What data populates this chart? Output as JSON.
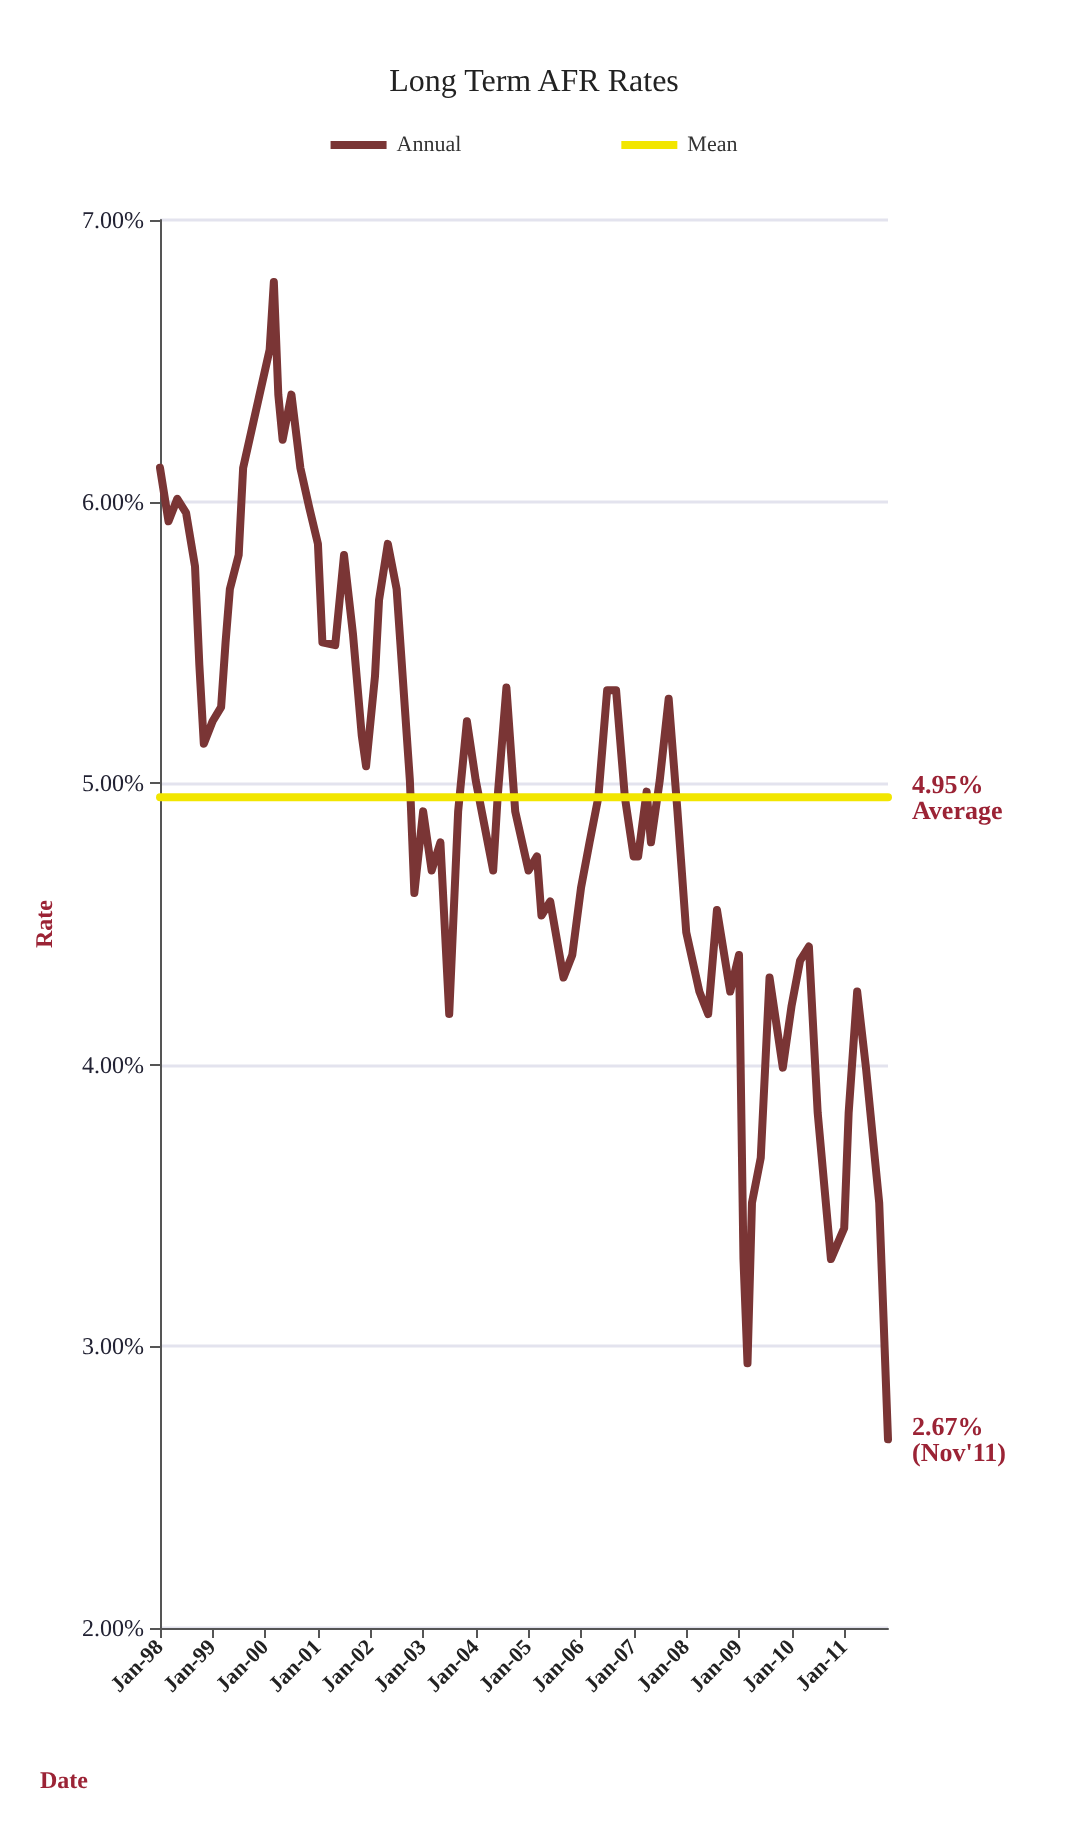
{
  "chart_data": {
    "type": "line",
    "title": "Long Term AFR Rates",
    "xlabel": "Date",
    "ylabel": "Rate",
    "x": [
      "1998-01",
      "1998-03",
      "1998-05",
      "1998-07",
      "1998-09",
      "1998-10",
      "1998-11",
      "1999-01",
      "1999-03",
      "1999-04",
      "1999-05",
      "1999-07",
      "1999-08",
      "1999-11",
      "2000-02",
      "2000-03",
      "2000-04",
      "2000-05",
      "2000-07",
      "2000-09",
      "2000-11",
      "2001-01",
      "2001-02",
      "2001-05",
      "2001-07",
      "2001-09",
      "2001-11",
      "2001-12",
      "2002-02",
      "2002-03",
      "2002-05",
      "2002-07",
      "2002-10",
      "2002-11",
      "2003-01",
      "2003-03",
      "2003-05",
      "2003-07",
      "2003-09",
      "2003-11",
      "2004-01",
      "2004-05",
      "2004-06",
      "2004-08",
      "2004-10",
      "2005-01",
      "2005-03",
      "2005-04",
      "2005-06",
      "2005-09",
      "2005-11",
      "2006-01",
      "2006-03",
      "2006-05",
      "2006-07",
      "2006-09",
      "2006-11",
      "2007-01",
      "2007-02",
      "2007-04",
      "2007-05",
      "2007-07",
      "2007-09",
      "2007-11",
      "2008-01",
      "2008-04",
      "2008-06",
      "2008-08",
      "2008-11",
      "2009-01",
      "2009-02",
      "2009-03",
      "2009-04",
      "2009-06",
      "2009-08",
      "2009-11",
      "2010-01",
      "2010-03",
      "2010-05",
      "2010-07",
      "2010-10",
      "2011-01",
      "2011-02",
      "2011-04",
      "2011-06",
      "2011-09",
      "2011-10",
      "2011-11"
    ],
    "series": [
      {
        "name": "Annual",
        "color": "#7a3535",
        "values": [
          6.12,
          5.93,
          6.01,
          5.96,
          5.77,
          5.42,
          5.14,
          5.22,
          5.27,
          5.5,
          5.69,
          5.81,
          6.12,
          6.33,
          6.54,
          6.78,
          6.38,
          6.22,
          6.38,
          6.12,
          5.98,
          5.85,
          5.5,
          5.49,
          5.81,
          5.53,
          5.17,
          5.06,
          5.38,
          5.65,
          5.85,
          5.69,
          5.01,
          4.61,
          4.9,
          4.69,
          4.79,
          4.18,
          4.9,
          5.22,
          5.01,
          4.69,
          4.95,
          5.34,
          4.9,
          4.69,
          4.74,
          4.53,
          4.58,
          4.31,
          4.39,
          4.63,
          4.79,
          4.95,
          5.33,
          5.33,
          4.95,
          4.74,
          4.74,
          4.97,
          4.79,
          5.01,
          5.3,
          4.9,
          4.47,
          4.26,
          4.18,
          4.55,
          4.26,
          4.39,
          3.31,
          2.94,
          3.51,
          3.67,
          4.31,
          3.99,
          4.21,
          4.37,
          4.42,
          3.83,
          3.31,
          3.42,
          3.83,
          4.26,
          3.99,
          3.51,
          3.1,
          2.67
        ]
      },
      {
        "name": "Mean",
        "color": "#f2e600",
        "x": [
          "1998-01",
          "2011-11"
        ],
        "values": [
          4.95,
          4.95
        ]
      }
    ],
    "xlim": [
      "1998-01",
      "2011-11"
    ],
    "xticks": [
      {
        "value": "1998-01",
        "label": "Jan-98"
      },
      {
        "value": "1999-01",
        "label": "Jan-99"
      },
      {
        "value": "2000-01",
        "label": "Jan-00"
      },
      {
        "value": "2001-01",
        "label": "Jan-01"
      },
      {
        "value": "2002-01",
        "label": "Jan-02"
      },
      {
        "value": "2003-01",
        "label": "Jan-03"
      },
      {
        "value": "2004-01",
        "label": "Jan-04"
      },
      {
        "value": "2005-01",
        "label": "Jan-05"
      },
      {
        "value": "2006-01",
        "label": "Jan-06"
      },
      {
        "value": "2007-01",
        "label": "Jan-07"
      },
      {
        "value": "2008-01",
        "label": "Jan-08"
      },
      {
        "value": "2009-01",
        "label": "Jan-09"
      },
      {
        "value": "2010-01",
        "label": "Jan-10"
      },
      {
        "value": "2011-01",
        "label": "Jan-11"
      }
    ],
    "ylim": [
      2,
      7
    ],
    "yticks": [
      {
        "value": 2,
        "label": "2.00%"
      },
      {
        "value": 3,
        "label": "3.00%"
      },
      {
        "value": 4,
        "label": "4.00%"
      },
      {
        "value": 5,
        "label": "5.00%"
      },
      {
        "value": 6,
        "label": "6.00%"
      },
      {
        "value": 7,
        "label": "7.00%"
      }
    ],
    "annotations": [
      {
        "text": "4.95%\nAverage",
        "x": "2011-11",
        "y": 4.95
      },
      {
        "text": "2.67%\n(Nov'11)",
        "x": "2011-11",
        "y": 2.67
      }
    ],
    "grid": "y",
    "legend": "top",
    "marker": "none",
    "line_style": "solid"
  }
}
